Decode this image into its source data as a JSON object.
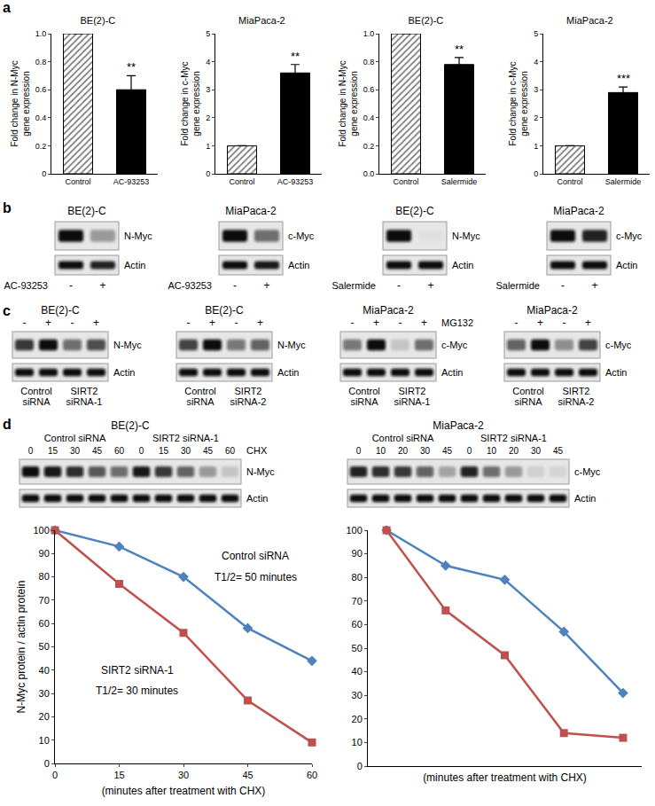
{
  "chart_data": [
    {
      "type": "bar",
      "title": "BE(2)-C",
      "ylabel": "Fold change in N-Myc gene expression",
      "categories": [
        "Control",
        "AC-93253"
      ],
      "values": [
        1,
        0.6
      ],
      "errors": [
        null,
        0.1
      ],
      "colors": [
        "#808080",
        "#000000"
      ],
      "ylim": [
        0,
        1
      ],
      "yticks": [
        0,
        0.2,
        0.4,
        0.6,
        0.8,
        {
          "value": 1,
          "label": "1.0"
        }
      ],
      "annotations": [
        {
          "text": "**",
          "category": "AC-93253"
        }
      ]
    },
    {
      "type": "bar",
      "title": "MiaPaca-2",
      "ylabel": "Fold change in c-Myc gene expression",
      "categories": [
        "Control",
        "AC-93253"
      ],
      "values": [
        1,
        3.6
      ],
      "errors": [
        null,
        0.3
      ],
      "colors": [
        "#808080",
        "#000000"
      ],
      "ylim": [
        0,
        5
      ],
      "yticks": [
        0,
        1,
        2,
        3,
        4,
        5
      ],
      "annotations": [
        {
          "text": "**",
          "category": "AC-93253"
        }
      ]
    },
    {
      "type": "bar",
      "title": "BE(2)-C",
      "ylabel": "Fold change in N-Myc gene expression",
      "categories": [
        "Control",
        "Salermide"
      ],
      "values": [
        1,
        0.78
      ],
      "errors": [
        null,
        0.05
      ],
      "colors": [
        "#808080",
        "#000000"
      ],
      "ylim": [
        0,
        1
      ],
      "yticks": [
        {
          "value": 0,
          "label": "0.0"
        },
        0.2,
        0.4,
        0.6,
        0.8,
        {
          "value": 1,
          "label": "1.0"
        }
      ],
      "annotations": [
        {
          "text": "**",
          "category": "Salermide"
        }
      ]
    },
    {
      "type": "bar",
      "title": "MiaPaca-2",
      "ylabel": "Fold change in c-Myc gene expression",
      "categories": [
        "Control",
        "Salermide"
      ],
      "values": [
        1,
        2.9
      ],
      "errors": [
        null,
        0.2
      ],
      "colors": [
        "#808080",
        "#000000"
      ],
      "ylim": [
        0,
        5
      ],
      "yticks": [
        0,
        1,
        2,
        3,
        4,
        5
      ],
      "annotations": [
        {
          "text": "***",
          "category": "Salermide"
        }
      ]
    },
    {
      "type": "line",
      "ylabel": "N-Myc protein / actin protein",
      "xlabel": "(minutes after treatment with CHX)",
      "x": [
        0,
        15,
        30,
        45,
        60
      ],
      "xlim": [
        0,
        60
      ],
      "xticks": [
        0,
        15,
        30,
        45,
        60
      ],
      "ylim": [
        0,
        100
      ],
      "yticks": [
        0,
        10,
        20,
        30,
        40,
        50,
        60,
        70,
        80,
        90,
        100
      ],
      "series": [
        {
          "color": "#4f81bd",
          "marker": "diamond",
          "values": [
            100,
            93,
            80,
            58,
            44
          ]
        },
        {
          "color": "#c0504d",
          "marker": "square",
          "values": [
            100,
            77,
            56,
            27,
            9
          ]
        }
      ],
      "annotations": [
        {
          "text": "Control siRNA"
        },
        {
          "text": "T1/2= 50 minutes"
        },
        {
          "text": "SIRT2 siRNA-1"
        },
        {
          "text": "T1/2= 30 minutes"
        }
      ]
    },
    {
      "type": "line",
      "xlabel": "(minutes after treatment with CHX)",
      "categories": [
        null,
        null,
        null,
        null,
        null
      ],
      "tick_labels": "y",
      "ylim": [
        0,
        100
      ],
      "yticks": [
        0,
        10,
        20,
        30,
        40,
        50,
        60,
        70,
        80,
        90,
        100
      ],
      "series": [
        {
          "color": "#4f81bd",
          "marker": "diamond",
          "values": [
            100,
            85,
            79,
            57,
            31
          ]
        },
        {
          "color": "#c0504d",
          "marker": "square",
          "values": [
            100,
            66,
            47,
            14,
            12
          ]
        }
      ]
    }
  ],
  "panel_labels": [
    "a",
    "b",
    "c",
    "d"
  ],
  "blots": {
    "b": [
      {
        "title": "BE(2)-C",
        "treatment": "AC-93253",
        "lane_labels": [
          "-",
          "+"
        ],
        "rows": [
          {
            "label": "N-Myc",
            "intensity": [
              1,
              0.35
            ]
          },
          {
            "label": "Actin",
            "intensity": [
              1,
              0.9
            ]
          }
        ]
      },
      {
        "title": "MiaPaca-2",
        "treatment": "AC-93253",
        "lane_labels": [
          "-",
          "+"
        ],
        "rows": [
          {
            "label": "c-Myc",
            "intensity": [
              1,
              0.55
            ]
          },
          {
            "label": "Actin",
            "intensity": [
              1,
              0.95
            ]
          }
        ]
      },
      {
        "title": "BE(2)-C",
        "treatment": "Salermide",
        "lane_labels": [
          "-",
          "+"
        ],
        "rows": [
          {
            "label": "N-Myc",
            "intensity": [
              1,
              0.02
            ]
          },
          {
            "label": "Actin",
            "intensity": [
              1,
              1
            ]
          }
        ]
      },
      {
        "title": "MiaPaca-2",
        "treatment": "Salermide",
        "lane_labels": [
          "-",
          "+"
        ],
        "rows": [
          {
            "label": "c-Myc",
            "intensity": [
              1,
              0.9
            ]
          },
          {
            "label": "Actin",
            "intensity": [
              1,
              1
            ]
          }
        ]
      }
    ],
    "c": [
      {
        "title": "BE(2)-C",
        "lane_labels": [
          "-",
          "+",
          "-",
          "+"
        ],
        "groups": [
          "Control siRNA",
          "SIRT2 siRNA-1"
        ],
        "rows": [
          {
            "label": "N-Myc",
            "intensity": [
              0.8,
              1,
              0.55,
              0.7
            ]
          },
          {
            "label": "Actin",
            "intensity": [
              1,
              1,
              1,
              1
            ]
          }
        ]
      },
      {
        "title": "BE(2)-C",
        "lane_labels": [
          "-",
          "+",
          "-",
          "+"
        ],
        "groups": [
          "Control siRNA",
          "SIRT2 siRNA-2"
        ],
        "rows": [
          {
            "label": "N-Myc",
            "intensity": [
              0.75,
              1,
              0.5,
              0.6
            ]
          },
          {
            "label": "Actin",
            "intensity": [
              1,
              1,
              1,
              1
            ]
          }
        ]
      },
      {
        "title": "MiaPaca-2",
        "lane_labels": [
          "-",
          "+",
          "-",
          "+"
        ],
        "lane_header": "MG132",
        "groups": [
          "Control siRNA",
          "SIRT2 siRNA-1"
        ],
        "rows": [
          {
            "label": "c-Myc",
            "intensity": [
              0.5,
              1,
              0.15,
              0.55
            ]
          },
          {
            "label": "Actin",
            "intensity": [
              1,
              1,
              1,
              1
            ]
          }
        ]
      },
      {
        "title": "MiaPaca-2",
        "lane_labels": [
          "-",
          "+",
          "-",
          "+"
        ],
        "groups": [
          "Control siRNA",
          "SIRT2 siRNA-2"
        ],
        "rows": [
          {
            "label": "c-Myc",
            "intensity": [
              0.6,
              1,
              0.4,
              0.75
            ]
          },
          {
            "label": "Actin",
            "intensity": [
              1,
              1,
              1,
              1
            ]
          }
        ]
      }
    ],
    "d": [
      {
        "title": "BE(2)-C",
        "lane_header": "CHX",
        "lane_labels": [
          0,
          15,
          30,
          45,
          60,
          0,
          15,
          30,
          45,
          60
        ],
        "groups": [
          "Control siRNA",
          "SIRT2 siRNA-1"
        ],
        "rows": [
          {
            "label": "N-Myc",
            "intensity": [
              1,
              0.95,
              0.85,
              0.65,
              0.55,
              0.95,
              0.8,
              0.6,
              0.35,
              0.15
            ]
          },
          {
            "label": "Actin",
            "intensity": [
              1,
              1,
              1,
              1,
              1,
              1,
              1,
              1,
              1,
              1
            ]
          }
        ]
      },
      {
        "title": "MiaPaca-2",
        "lane_labels": [
          0,
          10,
          20,
          30,
          45,
          0,
          10,
          20,
          30,
          45
        ],
        "groups": [
          "Control siRNA",
          "SIRT2 siRNA-1"
        ],
        "rows": [
          {
            "label": "c-Myc",
            "intensity": [
              0.9,
              0.85,
              0.8,
              0.6,
              0.3,
              0.9,
              0.55,
              0.35,
              0.1,
              0.08
            ]
          },
          {
            "label": "Actin",
            "intensity": [
              1,
              1,
              1,
              1,
              1,
              1,
              1,
              1,
              1,
              1
            ]
          }
        ]
      }
    ]
  }
}
